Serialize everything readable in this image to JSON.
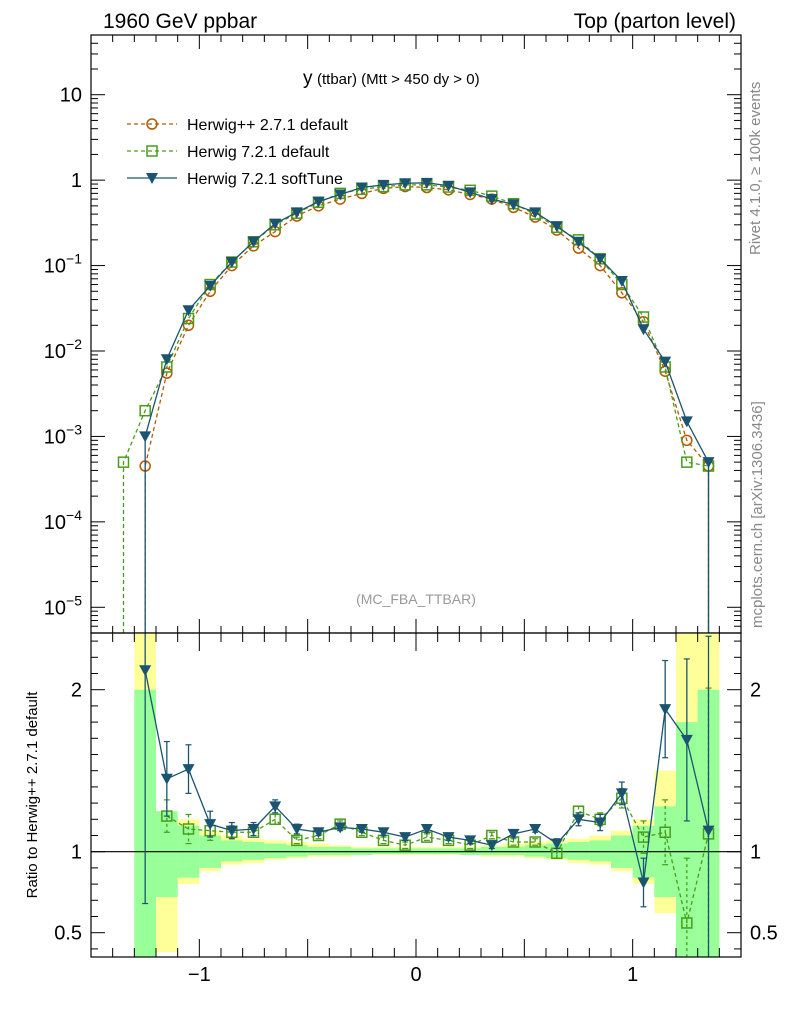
{
  "header": {
    "left": "1960 GeV ppbar",
    "right": "Top (parton level)"
  },
  "side": {
    "rivet": "Rivet 4.1.0, ≥ 100k events",
    "mcplots": "mcplots.cern.ch [arXiv:1306.3436]"
  },
  "colors": {
    "herwigpp": "#b35a00",
    "herwig721": "#4a9c1a",
    "softtune": "#1b5470",
    "band_yellow": "#ffff99",
    "band_green": "#99ff99"
  },
  "chart_data": [
    {
      "type": "line",
      "title": "y",
      "title_sub": "(ttbar) (Mtt > 450 dy > 0)",
      "watermark": "(MC_FBA_TTBAR)",
      "yscale": "log",
      "xlim": [
        -1.5,
        1.5
      ],
      "ylim": [
        5e-06,
        50
      ],
      "ytick_labels": [
        {
          "mantissa": "10",
          "exp": "−5",
          "value": 1e-05
        },
        {
          "mantissa": "10",
          "exp": "−4",
          "value": 0.0001
        },
        {
          "mantissa": "10",
          "exp": "−3",
          "value": 0.001
        },
        {
          "mantissa": "10",
          "exp": "−2",
          "value": 0.01
        },
        {
          "mantissa": "10",
          "exp": "−1",
          "value": 0.1
        },
        {
          "mantissa": "1",
          "exp": "",
          "value": 1
        },
        {
          "mantissa": "10",
          "exp": "",
          "value": 10
        }
      ],
      "x": [
        -1.35,
        -1.25,
        -1.15,
        -1.05,
        -0.95,
        -0.85,
        -0.75,
        -0.65,
        -0.55,
        -0.45,
        -0.35,
        -0.25,
        -0.15,
        -0.05,
        0.05,
        0.15,
        0.25,
        0.35,
        0.45,
        0.55,
        0.65,
        0.75,
        0.85,
        0.95,
        1.05,
        1.15,
        1.25,
        1.35
      ],
      "legend_position": "top-left",
      "series": [
        {
          "name": "Herwig++ 2.7.1 default",
          "marker": "circle-open",
          "dash": "dashed",
          "values": [
            null,
            0.00045,
            0.0055,
            0.02,
            0.05,
            0.1,
            0.17,
            0.25,
            0.38,
            0.5,
            0.6,
            0.7,
            0.8,
            0.84,
            0.82,
            0.77,
            0.68,
            0.6,
            0.48,
            0.37,
            0.26,
            0.16,
            0.1,
            0.048,
            0.022,
            0.0058,
            0.0009,
            0.00045
          ]
        },
        {
          "name": "Herwig 7.2.1 default",
          "marker": "square-open",
          "dash": "dashed",
          "values": [
            0.0005,
            0.002,
            0.0065,
            0.024,
            0.06,
            0.11,
            0.19,
            0.3,
            0.41,
            0.55,
            0.7,
            0.78,
            0.84,
            0.88,
            0.88,
            0.83,
            0.76,
            0.65,
            0.53,
            0.4,
            0.28,
            0.2,
            0.12,
            0.06,
            0.025,
            0.0065,
            0.0005,
            0.00045
          ]
        },
        {
          "name": "Herwig 7.2.1 softTune",
          "marker": "triangle-down",
          "dash": "solid",
          "values": [
            null,
            0.001,
            0.008,
            0.03,
            0.058,
            0.11,
            0.19,
            0.31,
            0.42,
            0.56,
            0.68,
            0.82,
            0.88,
            0.92,
            0.93,
            0.86,
            0.72,
            0.6,
            0.52,
            0.42,
            0.29,
            0.19,
            0.12,
            0.066,
            0.018,
            0.0075,
            0.0015,
            0.0005
          ]
        }
      ]
    },
    {
      "type": "line",
      "ylabel": "Ratio to Herwig++ 2.7.1 default",
      "xlabel": "",
      "xlim": [
        -1.5,
        1.5
      ],
      "ylim": [
        0.35,
        2.35
      ],
      "xtick_labels": [
        {
          "label": "−1",
          "value": -1
        },
        {
          "label": "0",
          "value": 0
        },
        {
          "label": "1",
          "value": 1
        }
      ],
      "ytick_labels": [
        {
          "label": "0.5",
          "value": 0.5
        },
        {
          "label": "1",
          "value": 1
        },
        {
          "label": "2",
          "value": 2
        }
      ],
      "reference_line": 1,
      "x": [
        -1.35,
        -1.25,
        -1.15,
        -1.05,
        -0.95,
        -0.85,
        -0.75,
        -0.65,
        -0.55,
        -0.45,
        -0.35,
        -0.25,
        -0.15,
        -0.05,
        0.05,
        0.15,
        0.25,
        0.35,
        0.45,
        0.55,
        0.65,
        0.75,
        0.85,
        0.95,
        1.05,
        1.15,
        1.25,
        1.35
      ],
      "bands": {
        "yellow": [
          [
            -1.3,
            -1.2,
            0.3,
            2.4
          ],
          [
            -1.2,
            -1.1,
            0.38,
            1.25
          ],
          [
            -1.1,
            -1.0,
            0.8,
            1.2
          ],
          [
            -1.0,
            -0.9,
            0.88,
            1.13
          ],
          [
            -0.9,
            -0.8,
            0.92,
            1.1
          ],
          [
            -0.8,
            -0.7,
            0.93,
            1.08
          ],
          [
            -0.7,
            -0.6,
            0.95,
            1.07
          ],
          [
            -0.6,
            -0.5,
            0.96,
            1.06
          ],
          [
            -0.5,
            -0.4,
            0.97,
            1.05
          ],
          [
            -0.4,
            -0.3,
            0.97,
            1.04
          ],
          [
            -0.3,
            -0.2,
            0.98,
            1.03
          ],
          [
            -0.2,
            -0.1,
            0.98,
            1.03
          ],
          [
            -0.1,
            0.0,
            0.98,
            1.03
          ],
          [
            0.0,
            0.1,
            0.98,
            1.03
          ],
          [
            0.1,
            0.2,
            0.98,
            1.03
          ],
          [
            0.2,
            0.3,
            0.98,
            1.03
          ],
          [
            0.3,
            0.4,
            0.97,
            1.04
          ],
          [
            0.4,
            0.5,
            0.97,
            1.05
          ],
          [
            0.5,
            0.6,
            0.96,
            1.06
          ],
          [
            0.6,
            0.7,
            0.95,
            1.07
          ],
          [
            0.7,
            0.8,
            0.93,
            1.08
          ],
          [
            0.8,
            0.9,
            0.92,
            1.1
          ],
          [
            0.9,
            1.0,
            0.88,
            1.13
          ],
          [
            1.0,
            1.1,
            0.8,
            1.2
          ],
          [
            1.1,
            1.2,
            0.62,
            1.5
          ],
          [
            1.2,
            1.3,
            0.38,
            2.4
          ],
          [
            1.3,
            1.4,
            0.3,
            2.4
          ]
        ],
        "green": [
          [
            -1.3,
            -1.2,
            0.3,
            2.0
          ],
          [
            -1.2,
            -1.1,
            0.72,
            1.25
          ],
          [
            -1.1,
            -1.0,
            0.84,
            1.16
          ],
          [
            -1.0,
            -0.9,
            0.9,
            1.1
          ],
          [
            -0.9,
            -0.8,
            0.94,
            1.07
          ],
          [
            -0.8,
            -0.7,
            0.95,
            1.06
          ],
          [
            -0.7,
            -0.6,
            0.96,
            1.05
          ],
          [
            -0.6,
            -0.5,
            0.97,
            1.04
          ],
          [
            -0.5,
            -0.4,
            0.98,
            1.03
          ],
          [
            -0.4,
            -0.3,
            0.98,
            1.03
          ],
          [
            -0.3,
            -0.2,
            0.98,
            1.02
          ],
          [
            -0.2,
            -0.1,
            0.985,
            1.02
          ],
          [
            -0.1,
            0.0,
            0.985,
            1.02
          ],
          [
            0.0,
            0.1,
            0.985,
            1.02
          ],
          [
            0.1,
            0.2,
            0.985,
            1.02
          ],
          [
            0.2,
            0.3,
            0.98,
            1.02
          ],
          [
            0.3,
            0.4,
            0.98,
            1.03
          ],
          [
            0.4,
            0.5,
            0.98,
            1.03
          ],
          [
            0.5,
            0.6,
            0.97,
            1.04
          ],
          [
            0.6,
            0.7,
            0.96,
            1.05
          ],
          [
            0.7,
            0.8,
            0.95,
            1.06
          ],
          [
            0.8,
            0.9,
            0.94,
            1.07
          ],
          [
            0.9,
            1.0,
            0.9,
            1.1
          ],
          [
            1.0,
            1.1,
            0.84,
            1.16
          ],
          [
            1.1,
            1.2,
            0.72,
            1.28
          ],
          [
            1.2,
            1.3,
            0.3,
            1.8
          ],
          [
            1.3,
            1.4,
            0.3,
            2.0
          ]
        ]
      },
      "series": [
        {
          "name": "Herwig 7.2.1 default",
          "marker": "square-open",
          "dash": "dashed",
          "values": [
            null,
            null,
            1.22,
            1.14,
            1.13,
            1.12,
            1.12,
            1.2,
            1.07,
            1.1,
            1.17,
            1.12,
            1.07,
            1.04,
            1.09,
            1.07,
            1.04,
            1.1,
            1.06,
            1.06,
            0.99,
            1.25,
            1.2,
            1.33,
            1.09,
            1.12,
            0.56,
            1.11
          ],
          "errors": [
            null,
            null,
            0.1,
            0.09,
            0.06,
            0.04,
            0.03,
            0.03,
            0.02,
            0.02,
            0.02,
            0.02,
            0.02,
            0.02,
            0.02,
            0.02,
            0.02,
            0.02,
            0.02,
            0.02,
            0.03,
            0.03,
            0.04,
            0.06,
            0.1,
            0.2,
            0.4,
            0.9
          ]
        },
        {
          "name": "Herwig 7.2.1 softTune",
          "marker": "triangle-down",
          "dash": "solid",
          "values": [
            null,
            2.12,
            1.45,
            1.51,
            1.17,
            1.13,
            1.14,
            1.28,
            1.14,
            1.12,
            1.15,
            1.14,
            1.12,
            1.09,
            1.14,
            1.09,
            1.07,
            1.04,
            1.11,
            1.14,
            1.05,
            1.2,
            1.18,
            1.36,
            0.81,
            1.88,
            1.69,
            1.13
          ],
          "errors": [
            null,
            1.44,
            0.23,
            0.15,
            0.08,
            0.05,
            0.04,
            0.04,
            0.03,
            0.02,
            0.02,
            0.02,
            0.02,
            0.02,
            0.02,
            0.02,
            0.02,
            0.02,
            0.02,
            0.02,
            0.03,
            0.04,
            0.05,
            0.07,
            0.15,
            0.3,
            0.5,
            1.2
          ]
        }
      ]
    }
  ]
}
